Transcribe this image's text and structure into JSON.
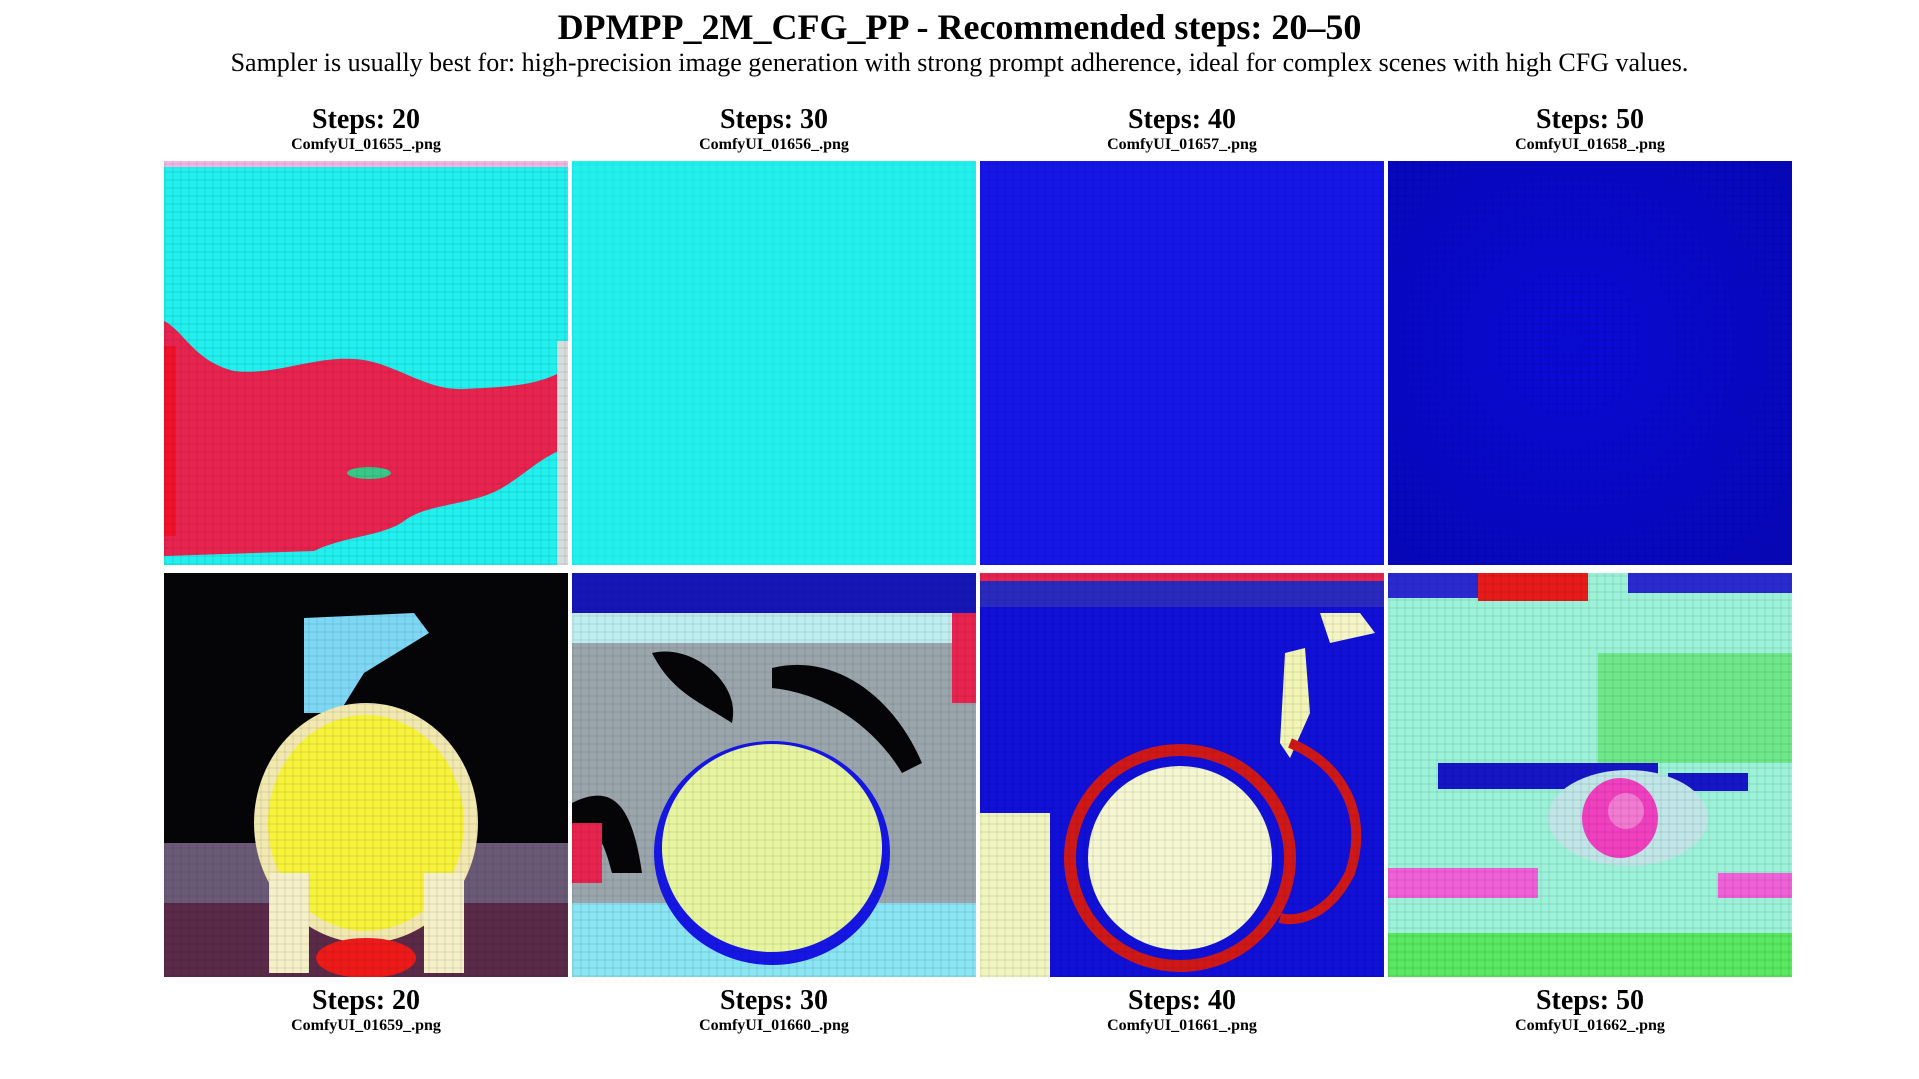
{
  "header": {
    "title": "DPMPP_2M_CFG_PP - Recommended steps: 20–50",
    "subtitle": "Sampler is usually best for: high-precision image generation with strong prompt adherence, ideal for complex scenes with high CFG values."
  },
  "rows": [
    {
      "items": [
        {
          "steps": "Steps: 20",
          "file": "ComfyUI_01655_.png"
        },
        {
          "steps": "Steps: 30",
          "file": "ComfyUI_01656_.png"
        },
        {
          "steps": "Steps: 40",
          "file": "ComfyUI_01657_.png"
        },
        {
          "steps": "Steps: 50",
          "file": "ComfyUI_01658_.png"
        }
      ]
    },
    {
      "items": [
        {
          "steps": "Steps: 20",
          "file": "ComfyUI_01659_.png"
        },
        {
          "steps": "Steps: 30",
          "file": "ComfyUI_01660_.png"
        },
        {
          "steps": "Steps: 40",
          "file": "ComfyUI_01661_.png"
        },
        {
          "steps": "Steps: 50",
          "file": "ComfyUI_01662_.png"
        }
      ]
    }
  ],
  "colors": {
    "cyan": "#22f0ee",
    "crimson": "#e8234f",
    "blue": "#1616e6",
    "navy": "#0b0bc8",
    "yellow": "#f7f23a",
    "black": "#050508",
    "mint": "#9cf2d8"
  }
}
